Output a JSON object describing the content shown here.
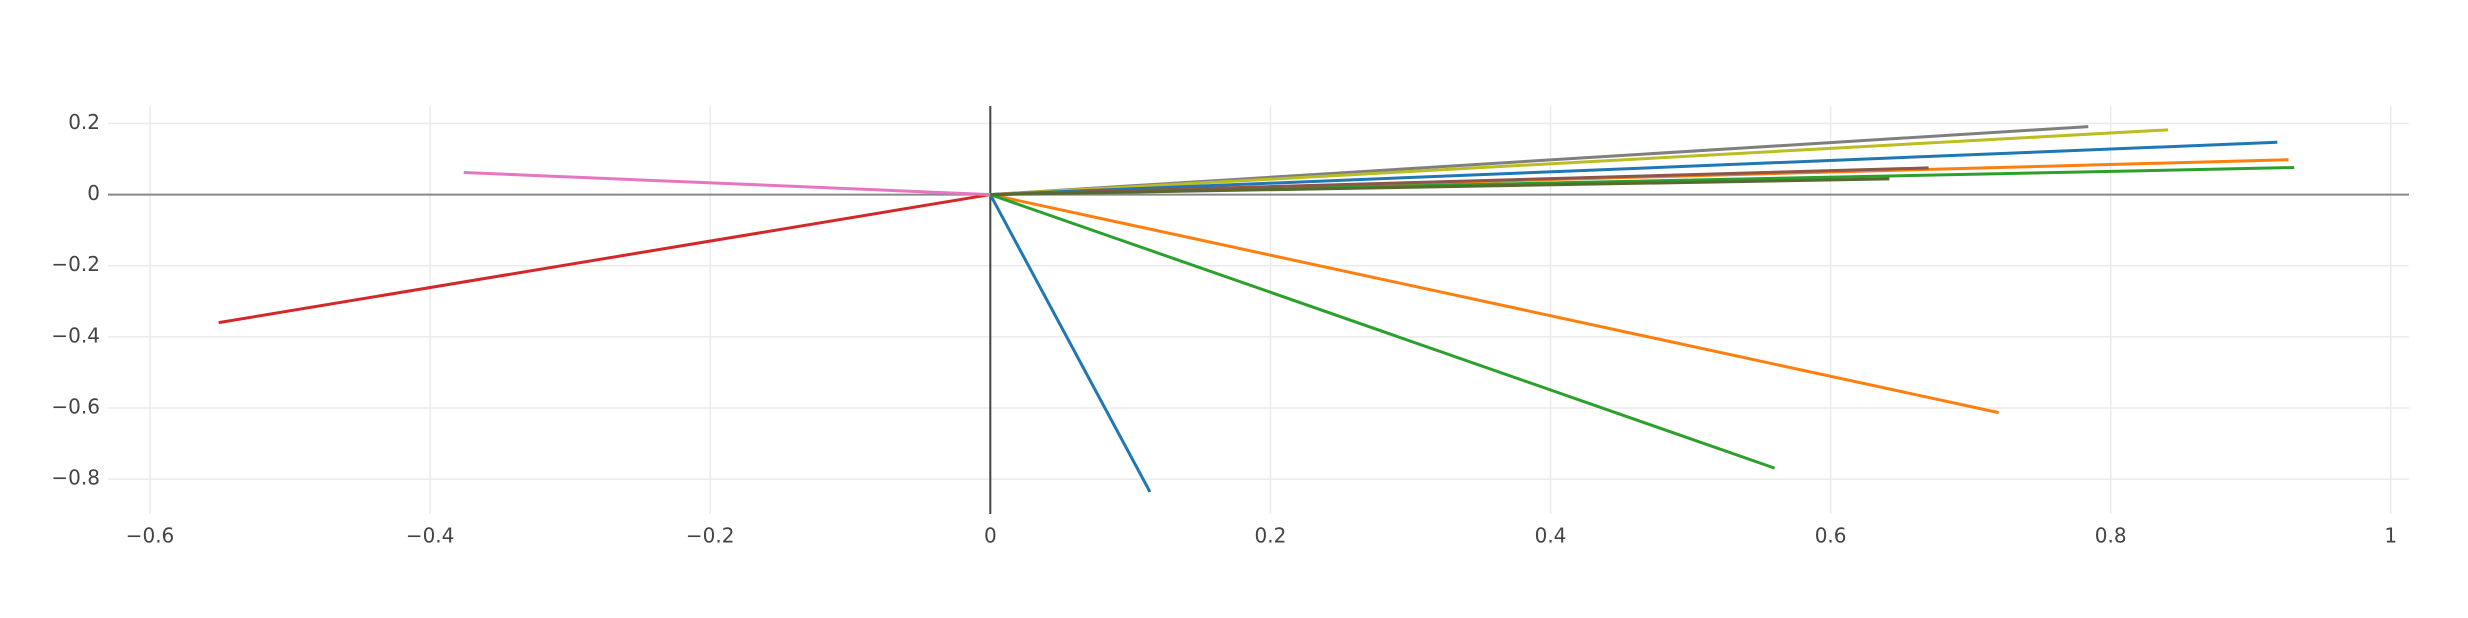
{
  "chart_data": {
    "type": "line",
    "xlim": [
      -0.63,
      1.013
    ],
    "ylim": [
      -0.898,
      0.249
    ],
    "xticks": [
      {
        "value": -0.6,
        "label": "−0.6"
      },
      {
        "value": -0.4,
        "label": "−0.4"
      },
      {
        "value": -0.2,
        "label": "−0.2"
      },
      0,
      0.2,
      0.4,
      0.6,
      0.8,
      1
    ],
    "yticks": [
      0.2,
      0,
      {
        "value": -0.2,
        "label": "−0.2"
      },
      {
        "value": -0.4,
        "label": "−0.4"
      },
      {
        "value": -0.6,
        "label": "−0.6"
      },
      {
        "value": -0.8,
        "label": "−0.8"
      }
    ],
    "grid": true,
    "series": [
      {
        "color": "#1f77b4",
        "x": [
          0,
          0.114
        ],
        "values": [
          0,
          -0.836
        ]
      },
      {
        "color": "#ff7f0e",
        "x": [
          0,
          0.72
        ],
        "values": [
          0,
          -0.613
        ]
      },
      {
        "color": "#2ca02c",
        "x": [
          0,
          0.56
        ],
        "values": [
          0,
          -0.769
        ]
      },
      {
        "color": "#d62728",
        "x": [
          0,
          -0.551
        ],
        "values": [
          0,
          -0.36
        ]
      },
      {
        "color": "#e377c2",
        "x": [
          0,
          -0.376
        ],
        "values": [
          0,
          0.062
        ]
      },
      {
        "color": "#7f7f7f",
        "x": [
          0,
          0.784
        ],
        "values": [
          0,
          0.191
        ]
      },
      {
        "color": "#bcbd22",
        "x": [
          0,
          0.841
        ],
        "values": [
          0,
          0.182
        ]
      },
      {
        "color": "#1f77b4",
        "x": [
          0,
          0.919
        ],
        "values": [
          0,
          0.147
        ]
      },
      {
        "color": "#ff7f0e",
        "x": [
          0,
          0.927
        ],
        "values": [
          0,
          0.098
        ]
      },
      {
        "color": "#2ca02c",
        "x": [
          0,
          0.931
        ],
        "values": [
          0,
          0.076
        ]
      },
      {
        "color": "#8c564b",
        "x": [
          0,
          0.67
        ],
        "values": [
          0,
          0.075
        ]
      },
      {
        "color": "#556b2f",
        "x": [
          0,
          0.642
        ],
        "values": [
          0,
          0.044
        ]
      }
    ]
  }
}
